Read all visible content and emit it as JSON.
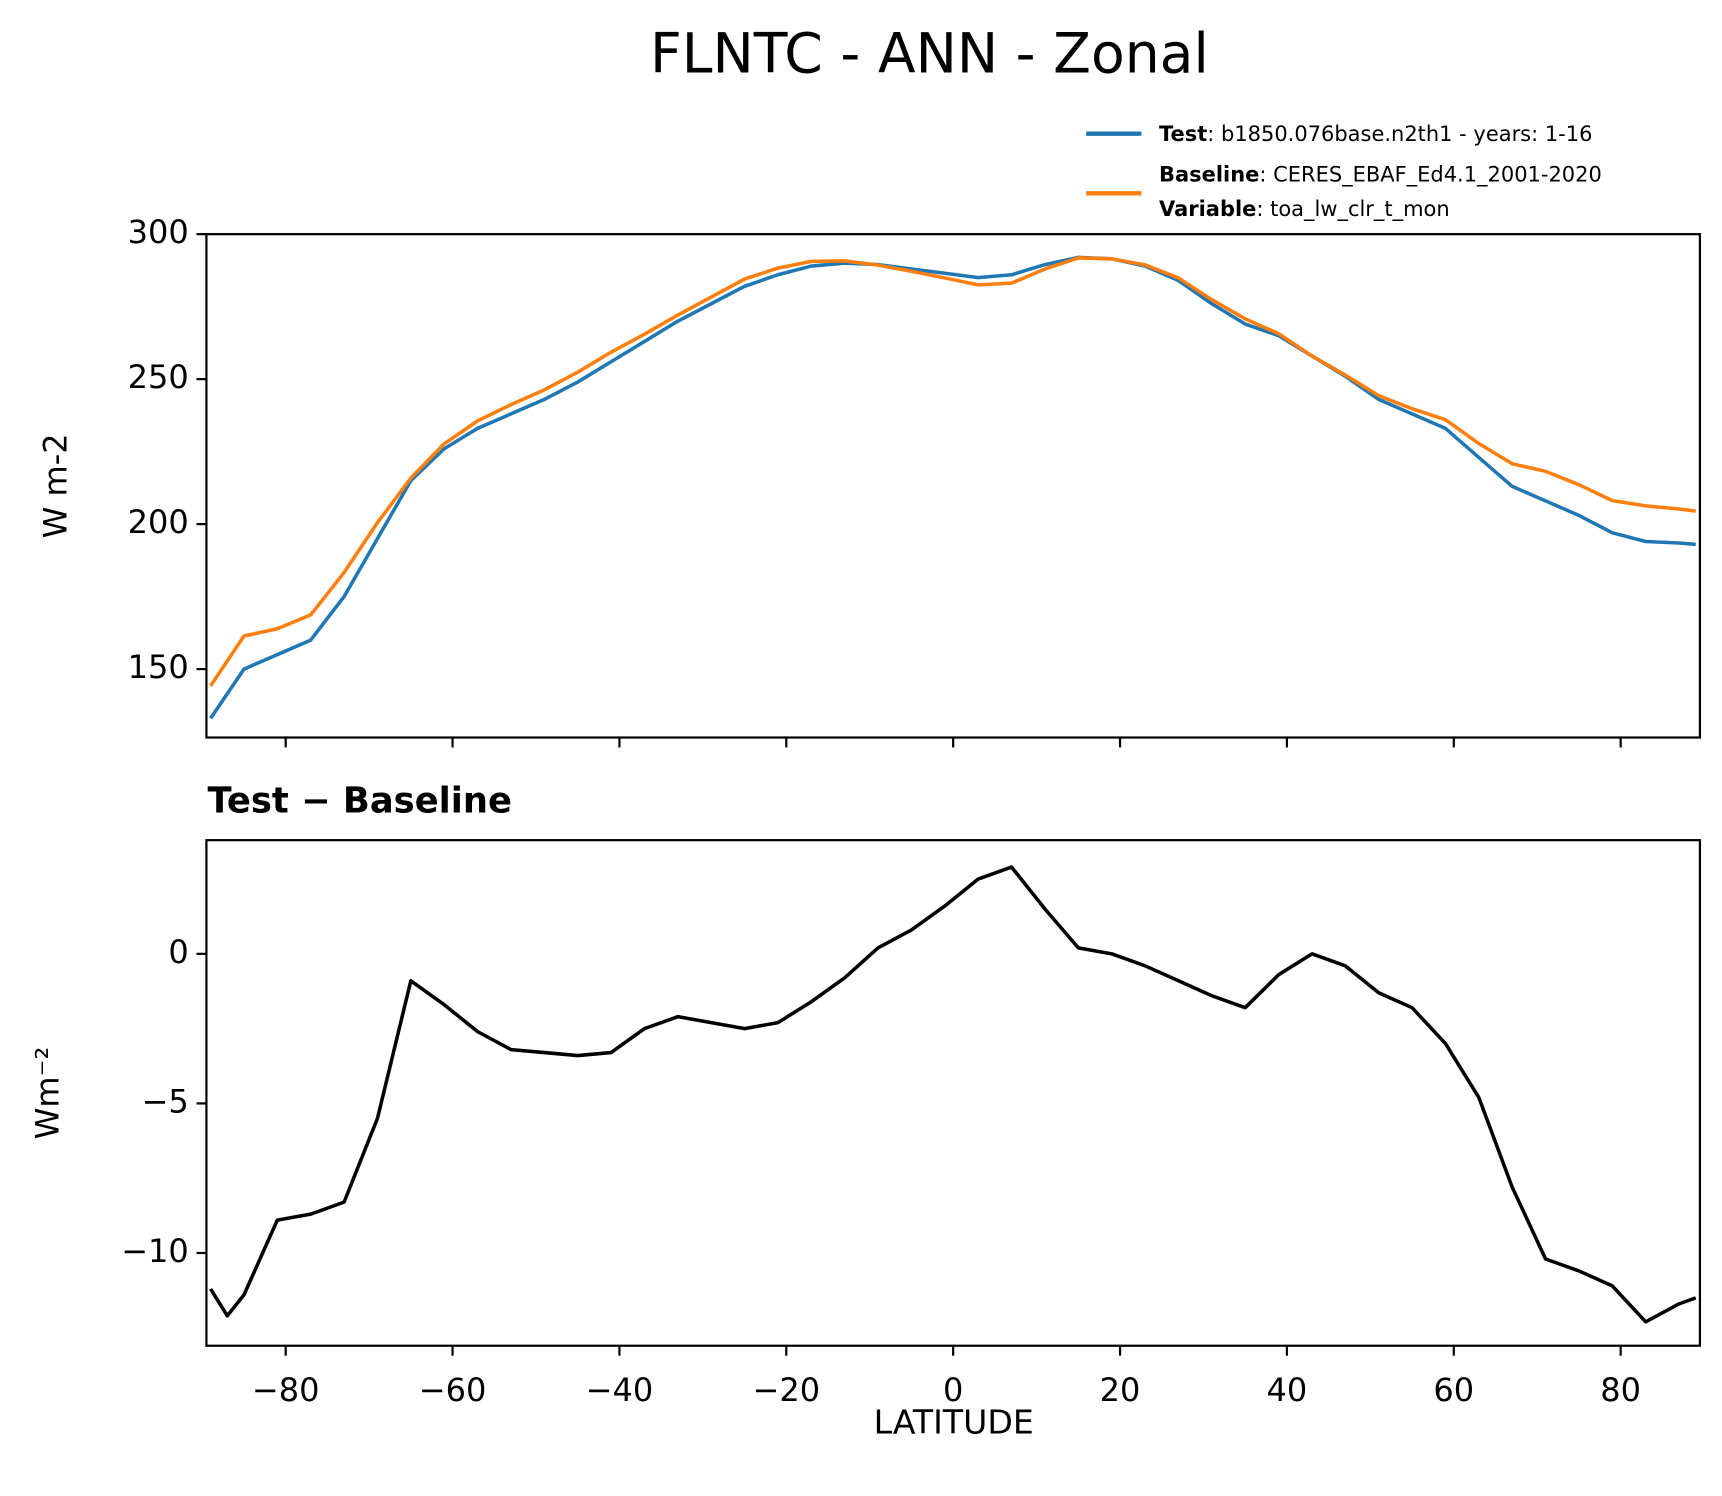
{
  "title": "FLNTC - ANN - Zonal",
  "legend_variable": {
    "name": "Variable",
    "label": ": toa_lw_clr_t_mon"
  },
  "chart_data": [
    {
      "type": "line",
      "ylabel": "W m-2",
      "x": [
        -89,
        -85,
        -81,
        -77,
        -73,
        -69,
        -65,
        -61,
        -57,
        -53,
        -49,
        -45,
        -41,
        -37,
        -33,
        -29,
        -25,
        -21,
        -17,
        -13,
        -9,
        -5,
        -1,
        3,
        7,
        11,
        15,
        19,
        23,
        27,
        31,
        35,
        39,
        43,
        47,
        51,
        55,
        59,
        63,
        67,
        71,
        75,
        79,
        83,
        87,
        89
      ],
      "xlim": [
        -89.5,
        89.5
      ],
      "xticks": [
        {
          "value": -80,
          "label": "−80"
        },
        {
          "value": -60,
          "label": "−60"
        },
        {
          "value": -40,
          "label": "−40"
        },
        {
          "value": -20,
          "label": "−20"
        },
        0,
        20,
        40,
        60,
        80
      ],
      "ylim": [
        126.4,
        300
      ],
      "yticks": [
        150,
        200,
        250,
        300
      ],
      "series": [
        {
          "name": "Test",
          "label": ": b1850.076base.n2th1 - years: 1-16",
          "color": "#1f77b4",
          "values": [
            133,
            150,
            155,
            160,
            175,
            195,
            215,
            226,
            233,
            238,
            243,
            249,
            256,
            263,
            270,
            276,
            282,
            286,
            289,
            290,
            289.5,
            288,
            286.5,
            285,
            286,
            289.5,
            292,
            291.5,
            289,
            284,
            276,
            269,
            265,
            258,
            251,
            243,
            238,
            233,
            223,
            213,
            208,
            203,
            197,
            194,
            193.5,
            193
          ]
        },
        {
          "name": "Baseline",
          "label": ": CERES_EBAF_Ed4.1_2001-2020",
          "color": "#ff7f0e",
          "values": [
            144.2,
            161.4,
            163.9,
            168.7,
            183.3,
            200.5,
            215.9,
            227.7,
            235.6,
            241.2,
            246.3,
            252.4,
            259.3,
            265.5,
            272.1,
            278.3,
            284.5,
            288.3,
            290.6,
            290.8,
            289.3,
            287.2,
            284.9,
            282.5,
            283.1,
            288,
            291.8,
            291.5,
            289.4,
            284.9,
            277.4,
            270.8,
            265.7,
            258,
            251.4,
            244.3,
            239.8,
            236,
            227.8,
            220.8,
            218.2,
            213.6,
            208.1,
            206.3,
            205.2,
            204.5
          ]
        }
      ]
    },
    {
      "type": "line",
      "title": "Test − Baseline",
      "ylabel": "Wm⁻²",
      "xlabel": "LATITUDE",
      "x": [
        -89,
        -87,
        -85,
        -81,
        -77,
        -73,
        -69,
        -65,
        -61,
        -57,
        -53,
        -49,
        -45,
        -41,
        -37,
        -33,
        -29,
        -25,
        -21,
        -17,
        -13,
        -9,
        -5,
        -1,
        3,
        7,
        11,
        15,
        19,
        23,
        27,
        31,
        35,
        39,
        43,
        47,
        51,
        55,
        59,
        63,
        67,
        71,
        75,
        79,
        83,
        87,
        89
      ],
      "xlim": [
        -89.5,
        89.5
      ],
      "xticks": [
        {
          "value": -80,
          "label": "−80"
        },
        {
          "value": -60,
          "label": "−60"
        },
        {
          "value": -40,
          "label": "−40"
        },
        {
          "value": -20,
          "label": "−20"
        },
        0,
        20,
        40,
        60,
        80
      ],
      "ylim": [
        -13.1,
        3.8
      ],
      "yticks": [
        {
          "value": -10,
          "label": "−10"
        },
        {
          "value": -5,
          "label": "−5"
        },
        0
      ],
      "series": [
        {
          "color": "#000000",
          "values": [
            -11.2,
            -12.1,
            -11.4,
            -8.9,
            -8.7,
            -8.3,
            -5.5,
            -0.9,
            -1.7,
            -2.6,
            -3.2,
            -3.3,
            -3.4,
            -3.3,
            -2.5,
            -2.1,
            -2.3,
            -2.5,
            -2.3,
            -1.6,
            -0.8,
            0.2,
            0.8,
            1.6,
            2.5,
            2.9,
            1.5,
            0.2,
            0.0,
            -0.4,
            -0.9,
            -1.4,
            -1.8,
            -0.7,
            0.0,
            -0.4,
            -1.3,
            -1.8,
            -3.0,
            -4.8,
            -7.8,
            -10.2,
            -10.6,
            -11.1,
            -12.3,
            -11.7,
            -11.5
          ]
        }
      ]
    }
  ]
}
